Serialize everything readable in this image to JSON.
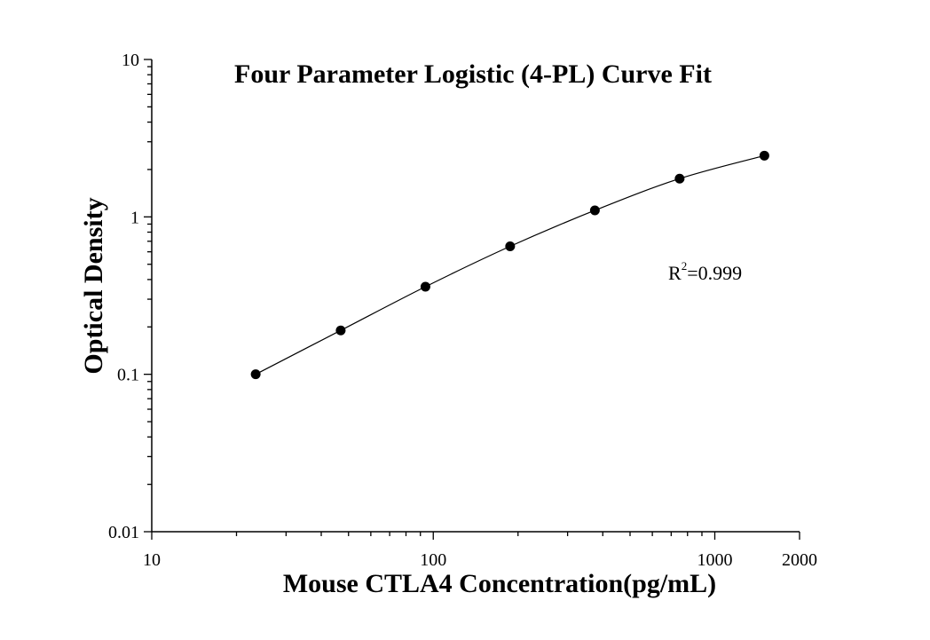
{
  "chart_data": {
    "type": "scatter",
    "title": "Four Parameter Logistic (4-PL) Curve Fit",
    "xlabel": "Mouse CTLA4 Concentration(pg/mL)",
    "ylabel": "Optical Density",
    "xscale": "log",
    "yscale": "log",
    "xlim": [
      10,
      2000
    ],
    "ylim": [
      0.01,
      10
    ],
    "x_ticks": [
      {
        "value": 10,
        "label": "10"
      },
      {
        "value": 100,
        "label": "100"
      },
      {
        "value": 1000,
        "label": "1000"
      },
      {
        "value": 2000,
        "label": "2000"
      }
    ],
    "y_ticks": [
      {
        "value": 0.01,
        "label": "0.01"
      },
      {
        "value": 0.1,
        "label": "0.1"
      },
      {
        "value": 1,
        "label": "1"
      },
      {
        "value": 10,
        "label": "10"
      }
    ],
    "grid": false,
    "legend": "none",
    "series": [
      {
        "x": [
          23.4,
          46.9,
          93.8,
          187.5,
          375,
          750,
          1500
        ],
        "y": [
          0.1,
          0.19,
          0.36,
          0.65,
          1.1,
          1.75,
          2.45
        ]
      }
    ],
    "annotation": {
      "base": "R",
      "superscript": "2",
      "rest": "=0.999"
    },
    "colors": {
      "marker": "#000000",
      "line": "#000000",
      "axis": "#000000"
    }
  }
}
